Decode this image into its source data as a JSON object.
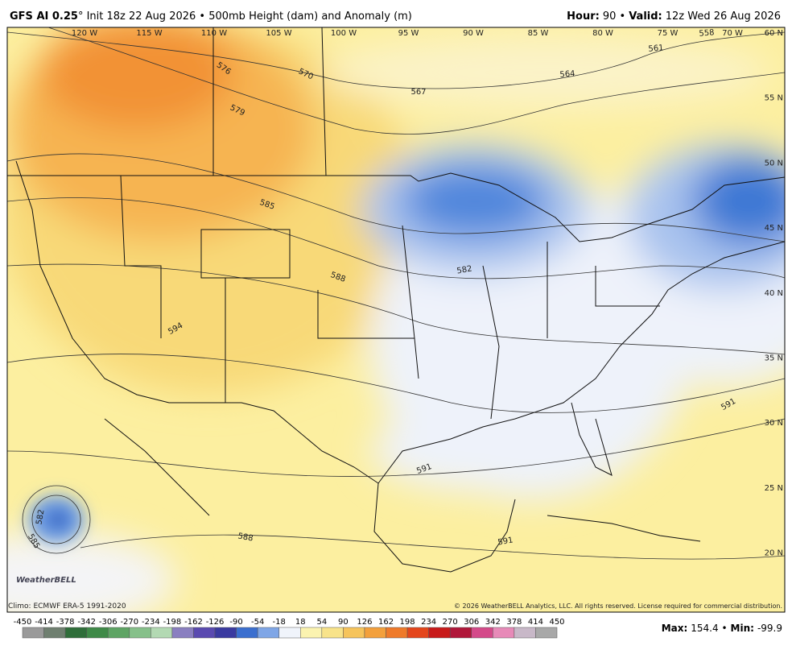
{
  "header": {
    "model": "GFS AI 0.25",
    "init": "° Init 18z 22 Aug 2026 • 500mb Height (dam) and Anomaly (m)",
    "hour_label": "Hour:",
    "hour": "90 •",
    "valid_label": "Valid:",
    "valid": "12z Wed 26 Aug 2026"
  },
  "map": {
    "lon_labels": [
      "120 W",
      "115 W",
      "110 W",
      "105 W",
      "100 W",
      "95 W",
      "90 W",
      "85 W",
      "80 W",
      "75 W",
      "70 W"
    ],
    "lat_labels": [
      "60 N",
      "55 N",
      "50 N",
      "45 N",
      "40 N",
      "35 N",
      "30 N",
      "25 N",
      "20 N"
    ],
    "contour_labels": [
      "576",
      "570",
      "567",
      "564",
      "561",
      "558",
      "579",
      "585",
      "588",
      "582",
      "594",
      "591",
      "591",
      "591",
      "588",
      "582",
      "585"
    ],
    "logo": "WeatherBELL"
  },
  "footer": {
    "climo": "Climo: ECMWF ERA-5 1991-2020",
    "copyright": "© 2026 WeatherBELL Analytics, LLC. All rights reserved. License required for commercial distribution.",
    "max_label": "Max:",
    "max": "154.4 •",
    "min_label": "Min:",
    "min": "-99.9"
  },
  "colorbar": {
    "labels": [
      -450,
      -414,
      -378,
      -342,
      -306,
      -270,
      -234,
      -198,
      -162,
      -126,
      -90,
      -54,
      -18,
      18,
      54,
      90,
      126,
      162,
      198,
      234,
      270,
      306,
      342,
      378,
      414,
      450
    ],
    "colors": [
      "#9a9a9a",
      "#6f7f70",
      "#2f6e3a",
      "#3f8a48",
      "#5ea464",
      "#86c08a",
      "#b3d9b3",
      "#8a7fc0",
      "#5a4ab0",
      "#3a3aa0",
      "#3b6fcf",
      "#7fa6e6",
      "#f0f4fb",
      "#fbf3b0",
      "#f8e38a",
      "#f6c45c",
      "#f3a03c",
      "#ef7a2a",
      "#e4461c",
      "#c81a1a",
      "#b0173a",
      "#d44a8a",
      "#e78ab8",
      "#c8b8c8",
      "#a8a8a8"
    ]
  }
}
